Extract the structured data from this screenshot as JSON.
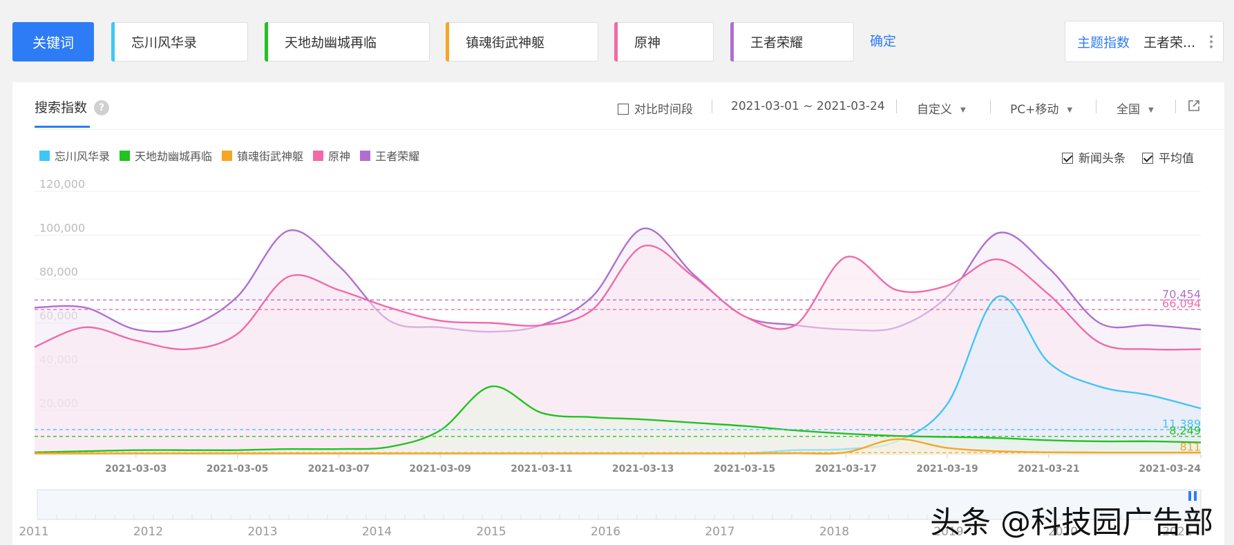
{
  "keyword_button": "关键词",
  "terms": [
    {
      "label": "忘川风华录",
      "color": "#3fc6f6"
    },
    {
      "label": "天地劫幽城再临",
      "color": "#21c221"
    },
    {
      "label": "镇魂街武神躯",
      "color": "#f5a623"
    },
    {
      "label": "原神",
      "color": "#f06aa8"
    },
    {
      "label": "王者荣耀",
      "color": "#b06fcf"
    }
  ],
  "confirm_label": "确定",
  "theme": {
    "label": "主题指数",
    "value": "王者荣...",
    "more_icon": "vertical-dots-icon"
  },
  "panel": {
    "title": "搜索指数",
    "help_icon": "?",
    "compare_label": "对比时间段",
    "date_range": "2021-03-01 ~ 2021-03-24",
    "custom_label": "自定义",
    "device_label": "PC+移动",
    "region_label": "全国",
    "share_icon": "export-icon"
  },
  "options": [
    {
      "label": "新闻头条",
      "checked": true
    },
    {
      "label": "平均值",
      "checked": true
    }
  ],
  "chart_data": {
    "type": "area",
    "ylim": [
      0,
      120000
    ],
    "yticks": [
      "120,000",
      "100,000",
      "80,000",
      "60,000",
      "40,000",
      "20,000"
    ],
    "ytick_values": [
      120000,
      100000,
      80000,
      60000,
      40000,
      20000
    ],
    "x": [
      "2021-03-01",
      "2021-03-02",
      "2021-03-03",
      "2021-03-04",
      "2021-03-05",
      "2021-03-06",
      "2021-03-07",
      "2021-03-08",
      "2021-03-09",
      "2021-03-10",
      "2021-03-11",
      "2021-03-12",
      "2021-03-13",
      "2021-03-14",
      "2021-03-15",
      "2021-03-16",
      "2021-03-17",
      "2021-03-18",
      "2021-03-19",
      "2021-03-20",
      "2021-03-21",
      "2021-03-22",
      "2021-03-23",
      "2021-03-24"
    ],
    "xtick_labels": [
      "2021-03-03",
      "2021-03-05",
      "2021-03-07",
      "2021-03-09",
      "2021-03-11",
      "2021-03-13",
      "2021-03-15",
      "2021-03-17",
      "2021-03-19",
      "2021-03-21",
      "2021-03-24"
    ],
    "xtick_index": [
      2,
      4,
      6,
      8,
      10,
      12,
      14,
      16,
      18,
      20,
      23
    ],
    "series": [
      {
        "name": "王者荣耀",
        "color": "#b06fcf",
        "fill": "#f3e9f6",
        "values": [
          67000,
          67000,
          57000,
          58000,
          72000,
          102000,
          86000,
          61000,
          58000,
          56000,
          59000,
          72000,
          103000,
          82000,
          63000,
          59000,
          57000,
          58000,
          72000,
          101000,
          85000,
          60000,
          59000,
          57000
        ],
        "average": 70454,
        "average_label": "70,454"
      },
      {
        "name": "原神",
        "color": "#f06aa8",
        "fill": "#fbe6f0",
        "values": [
          49000,
          58000,
          52000,
          48000,
          55000,
          81000,
          75000,
          67000,
          61000,
          60000,
          59000,
          66000,
          95000,
          81000,
          63000,
          59000,
          90000,
          75000,
          77000,
          89000,
          73000,
          51000,
          48000,
          48000
        ],
        "average": 66094,
        "average_label": "66,094"
      },
      {
        "name": "忘川风华录",
        "color": "#3fc6f6",
        "fill": "#dfeefa",
        "values": null,
        "segment": {
          "from_index": 15,
          "values": [
            2000,
            2500,
            6000,
            23000,
            72000,
            42000,
            31000,
            27000,
            21000
          ]
        },
        "average": 11389,
        "average_label": "11,389"
      },
      {
        "name": "天地劫幽城再临",
        "color": "#21c221",
        "fill": "#e9f5e4",
        "values": [
          1000,
          1500,
          2000,
          2000,
          2000,
          2500,
          2500,
          3500,
          11000,
          31000,
          19000,
          17000,
          16000,
          14500,
          13000,
          11000,
          9500,
          8500,
          8000,
          7500,
          6500,
          6000,
          6000,
          5500
        ],
        "average": 8249,
        "average_label": "8,249"
      },
      {
        "name": "镇魂街武神躯",
        "color": "#f5a623",
        "fill": "#fbf0dc",
        "values": [
          500,
          500,
          500,
          500,
          500,
          500,
          500,
          500,
          500,
          500,
          500,
          500,
          500,
          500,
          500,
          600,
          1000,
          7000,
          3000,
          1500,
          1000,
          900,
          900,
          900
        ],
        "average": 811,
        "average_label": "811"
      }
    ],
    "overview_years": [
      "2011",
      "2012",
      "2013",
      "2014",
      "2015",
      "2016",
      "2017",
      "2018",
      "2019",
      "2020",
      "2021"
    ]
  },
  "watermark": "头条 @科技园广告部"
}
